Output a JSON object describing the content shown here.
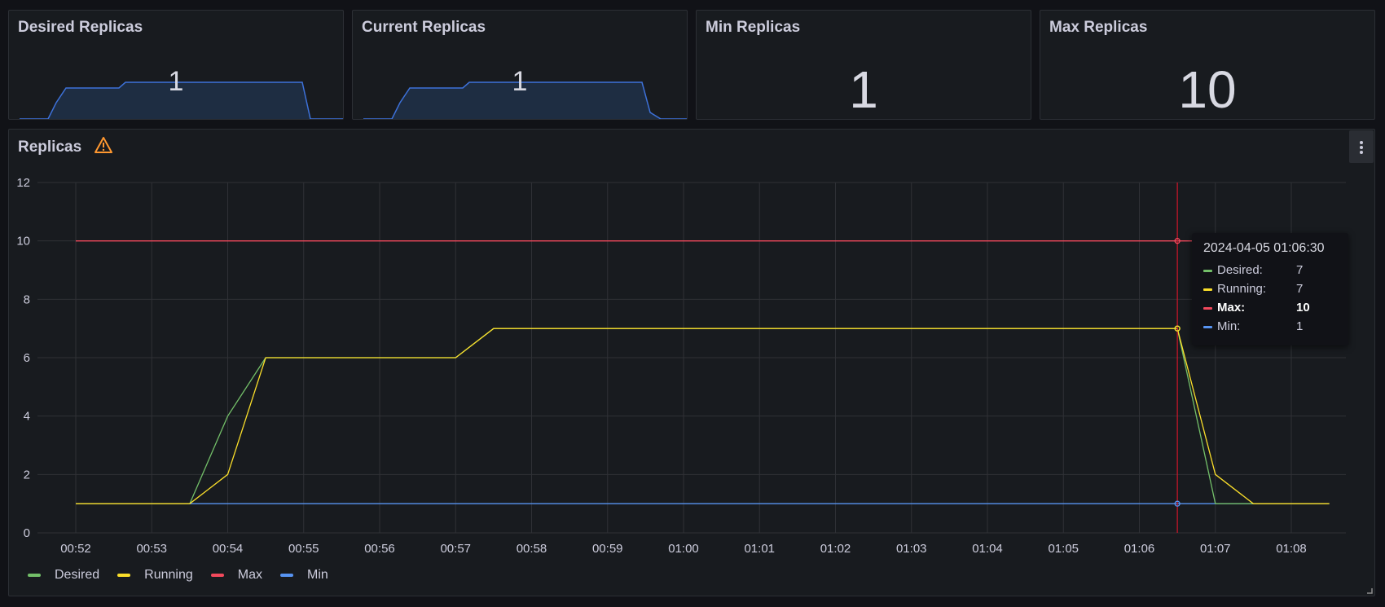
{
  "stats": [
    {
      "title": "Desired Replicas",
      "value": "1"
    },
    {
      "title": "Current Replicas",
      "value": "1"
    },
    {
      "title": "Min Replicas",
      "value": "1"
    },
    {
      "title": "Max Replicas",
      "value": "10"
    }
  ],
  "sparkline": {
    "color": "#3d71d9",
    "fill": "#1e2d42",
    "x": [
      0,
      1,
      2,
      3,
      4,
      5,
      6,
      7,
      8
    ],
    "y": [
      1,
      1,
      2,
      6,
      6,
      7,
      7,
      7,
      1
    ]
  },
  "replicas_panel": {
    "title": "Replicas",
    "warning_icon": "warning-triangle-icon",
    "menu_icon": "kebab-menu-icon"
  },
  "chart_data": {
    "type": "line",
    "title": "Replicas",
    "x": [
      "00:52",
      "00:52:30",
      "00:53",
      "00:53:30",
      "00:54",
      "00:54:30",
      "00:55",
      "00:55:30",
      "00:56",
      "00:56:30",
      "00:57",
      "00:57:30",
      "00:58",
      "00:58:30",
      "00:59",
      "00:59:30",
      "01:00",
      "01:00:30",
      "01:01",
      "01:01:30",
      "01:02",
      "01:02:30",
      "01:03",
      "01:03:30",
      "01:04",
      "01:04:30",
      "01:05",
      "01:05:30",
      "01:06",
      "01:06:30",
      "01:07",
      "01:07:30",
      "01:08",
      "01:08:30"
    ],
    "x_ticks": [
      "00:52",
      "00:53",
      "00:54",
      "00:55",
      "00:56",
      "00:57",
      "00:58",
      "00:59",
      "01:00",
      "01:01",
      "01:02",
      "01:03",
      "01:04",
      "01:05",
      "01:06",
      "01:07",
      "01:08"
    ],
    "y_ticks": [
      "0",
      "2",
      "4",
      "6",
      "8",
      "10",
      "12"
    ],
    "ylim": [
      0,
      12
    ],
    "grid": true,
    "legend": "bottom-left",
    "series": [
      {
        "name": "Desired",
        "color": "#73bf69",
        "values": [
          1,
          1,
          1,
          1,
          4,
          6,
          6,
          6,
          6,
          6,
          6,
          7,
          7,
          7,
          7,
          7,
          7,
          7,
          7,
          7,
          7,
          7,
          7,
          7,
          7,
          7,
          7,
          7,
          7,
          7,
          1,
          1,
          1,
          1
        ]
      },
      {
        "name": "Running",
        "color": "#fade2a",
        "values": [
          1,
          1,
          1,
          1,
          2,
          6,
          6,
          6,
          6,
          6,
          6,
          7,
          7,
          7,
          7,
          7,
          7,
          7,
          7,
          7,
          7,
          7,
          7,
          7,
          7,
          7,
          7,
          7,
          7,
          7,
          2,
          1,
          1,
          1
        ]
      },
      {
        "name": "Max",
        "color": "#f2495c",
        "values": [
          10,
          10,
          10,
          10,
          10,
          10,
          10,
          10,
          10,
          10,
          10,
          10,
          10,
          10,
          10,
          10,
          10,
          10,
          10,
          10,
          10,
          10,
          10,
          10,
          10,
          10,
          10,
          10,
          10,
          10,
          10,
          10,
          10,
          10
        ]
      },
      {
        "name": "Min",
        "color": "#5794f2",
        "values": [
          1,
          1,
          1,
          1,
          1,
          1,
          1,
          1,
          1,
          1,
          1,
          1,
          1,
          1,
          1,
          1,
          1,
          1,
          1,
          1,
          1,
          1,
          1,
          1,
          1,
          1,
          1,
          1,
          1,
          1,
          1,
          1,
          1,
          1
        ]
      }
    ],
    "hover_x": "01:06:30"
  },
  "tooltip": {
    "time": "2024-04-05 01:06:30",
    "rows": [
      {
        "label": "Desired:",
        "value": "7",
        "color": "#73bf69"
      },
      {
        "label": "Running:",
        "value": "7",
        "color": "#fade2a"
      },
      {
        "label": "Max:",
        "value": "10",
        "color": "#f2495c"
      },
      {
        "label": "Min:",
        "value": "1",
        "color": "#5794f2"
      }
    ]
  },
  "legend": [
    {
      "label": "Desired",
      "color": "#73bf69"
    },
    {
      "label": "Running",
      "color": "#fade2a"
    },
    {
      "label": "Max",
      "color": "#f2495c"
    },
    {
      "label": "Min",
      "color": "#5794f2"
    }
  ]
}
